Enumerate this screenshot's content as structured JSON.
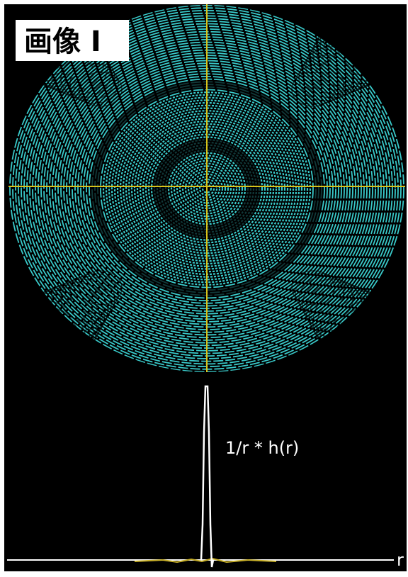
{
  "image": {
    "label": "画像 I"
  },
  "plot": {
    "curve_label": "1/r * h(r)",
    "axis_label": "r"
  }
}
